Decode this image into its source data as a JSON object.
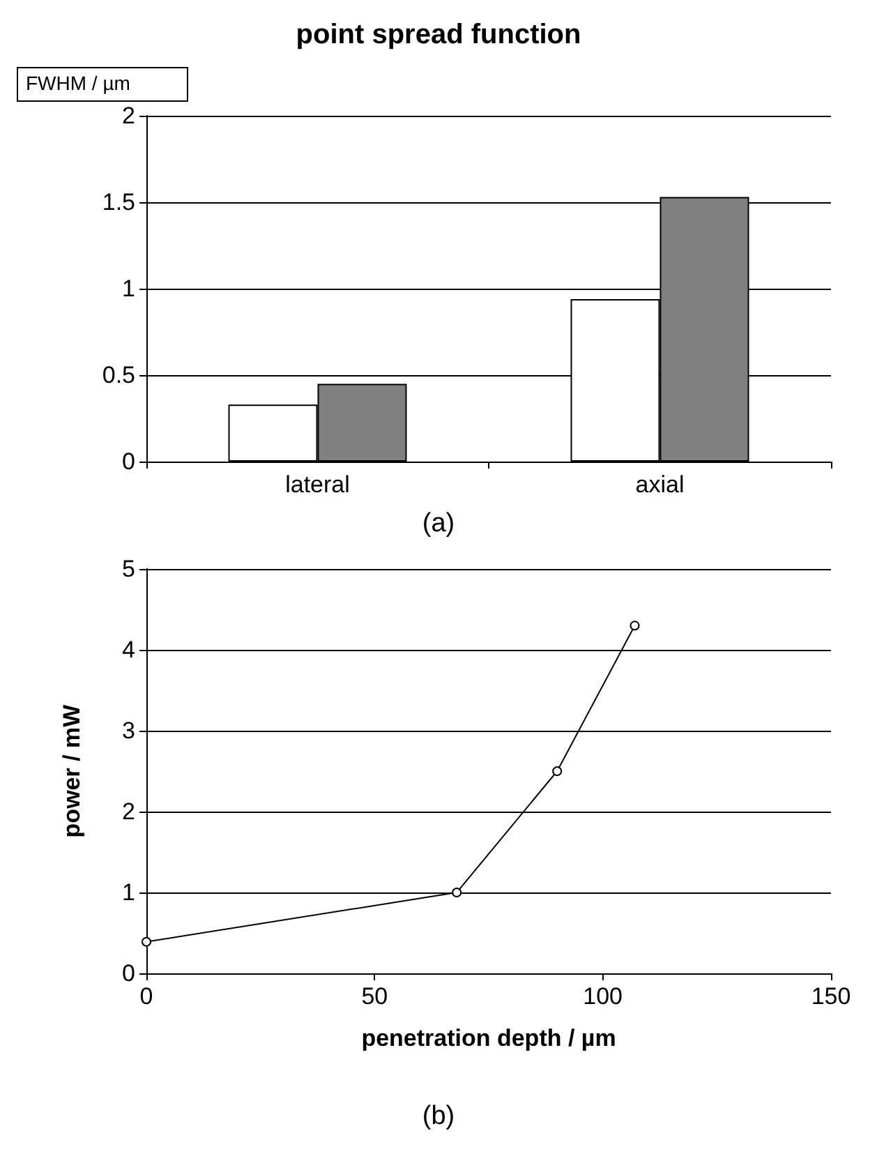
{
  "chart_data": [
    {
      "type": "bar",
      "title": "point spread function",
      "ylabel": "FWHM / µm",
      "categories": [
        "lateral",
        "axial"
      ],
      "series": [
        {
          "color": "#ffffff",
          "values": [
            0.33,
            0.94
          ]
        },
        {
          "color": "#808080",
          "values": [
            0.45,
            1.53
          ]
        }
      ],
      "ylim": [
        0,
        2
      ],
      "yticks": [
        0,
        0.5,
        1,
        1.5,
        2
      ],
      "grid": "y",
      "annotations": [
        "(a)"
      ]
    },
    {
      "type": "line",
      "xlabel": "penetration depth / µm",
      "ylabel": "power / mW",
      "x": [
        0,
        68,
        90,
        107
      ],
      "values": [
        0.39,
        1.0,
        2.5,
        4.3
      ],
      "color": "#000000",
      "marker": "circle",
      "xlim": [
        0,
        150
      ],
      "xticks": [
        0,
        50,
        100,
        150
      ],
      "ylim": [
        0,
        5
      ],
      "yticks": [
        0,
        1,
        2,
        3,
        4,
        5
      ],
      "grid": "y",
      "annotations": [
        "(b)"
      ]
    }
  ]
}
